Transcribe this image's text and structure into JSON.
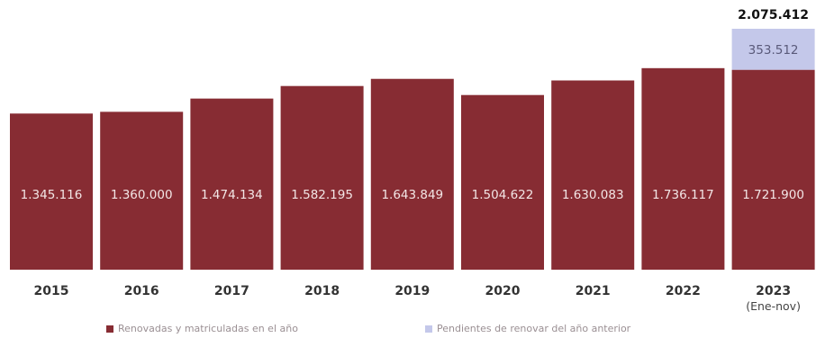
{
  "chart_data": {
    "type": "bar",
    "stacked": true,
    "categories": [
      "2015",
      "2016",
      "2017",
      "2018",
      "2019",
      "2020",
      "2021",
      "2022",
      "2023"
    ],
    "category_sublabels": [
      "",
      "",
      "",
      "",
      "",
      "",
      "",
      "",
      "(Ene-nov)"
    ],
    "series": [
      {
        "name": "Renovadas y matriculadas en el año",
        "color": "#872c33",
        "values": [
          1345116,
          1360000,
          1474134,
          1582195,
          1643849,
          1504622,
          1630083,
          1736117,
          1721900
        ],
        "labels": [
          "1.345.116",
          "1.360.000",
          "1.474.134",
          "1.582.195",
          "1.643.849",
          "1.504.622",
          "1.630.083",
          "1.736.117",
          "1.721.900"
        ]
      },
      {
        "name": "Pendientes de renovar del año anterior",
        "color": "#c4c8ea",
        "values": [
          null,
          null,
          null,
          null,
          null,
          null,
          null,
          null,
          353512
        ],
        "labels": [
          "",
          "",
          "",
          "",
          "",
          "",
          "",
          "",
          "353.512"
        ]
      }
    ],
    "totals": [
      {
        "category": "2023",
        "value": 2075412,
        "label": "2.075.412"
      }
    ],
    "legend_position": "bottom",
    "grid": false,
    "ylim": [
      0,
      2075412
    ]
  }
}
